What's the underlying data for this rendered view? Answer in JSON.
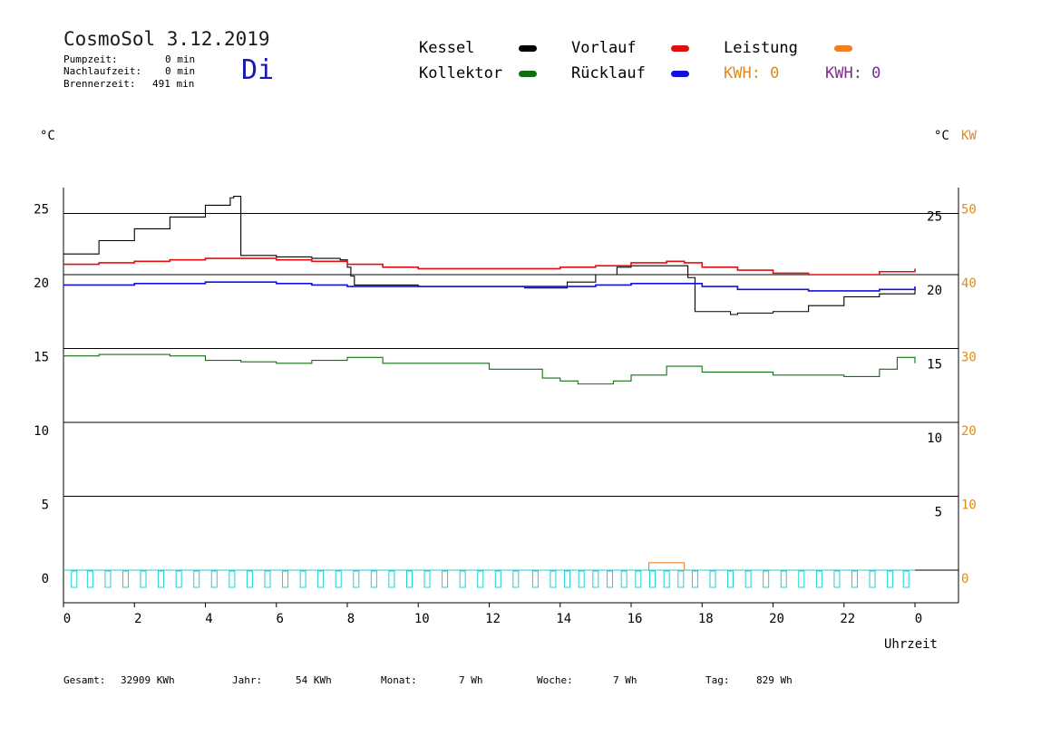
{
  "header": {
    "title": "CosmoSol 3.12.2019",
    "weekday": "Di",
    "stats": [
      {
        "label": "Pumpzeit:",
        "value": "0 min"
      },
      {
        "label": "Nachlaufzeit:",
        "value": "0 min"
      },
      {
        "label": "Brennerzeit:",
        "value": "491 min"
      }
    ]
  },
  "legend": {
    "kessel": "Kessel",
    "kollektor": "Kollektor",
    "vorlauf": "Vorlauf",
    "ruecklauf": "Rücklauf",
    "leistung": "Leistung",
    "kwh_orange": "KWH: 0",
    "kwh_purple": "KWH: 0"
  },
  "units": {
    "left": "°C",
    "right": "°C",
    "right_kw": "KW"
  },
  "footer": {
    "gesamt_label": "Gesamt:",
    "gesamt_value": "32909 KWh",
    "jahr_label": "Jahr:",
    "jahr_value": "54 KWh",
    "monat_label": "Monat:",
    "monat_value": "7 Wh",
    "woche_label": "Woche:",
    "woche_value": "7 Wh",
    "tag_label": "Tag:",
    "tag_value": "829 Wh"
  },
  "colors": {
    "kessel": "#000000",
    "vorlauf": "#e01010",
    "ruecklauf": "#1010e0",
    "kollektor": "#107010",
    "leistung": "#f08020",
    "pump": "#20d0d0",
    "kw_axis": "#e08a1e"
  },
  "chart_data": {
    "type": "line",
    "xlabel": "Uhrzeit",
    "x_ticks": [
      "0",
      "2",
      "4",
      "6",
      "8",
      "10",
      "12",
      "14",
      "16",
      "18",
      "20",
      "22",
      "0"
    ],
    "y_left_ticks": [
      "0",
      "5",
      "10",
      "15",
      "20",
      "25"
    ],
    "y_right_ticks": [
      "5",
      "10",
      "15",
      "20",
      "25"
    ],
    "y_right_kw_ticks": [
      "0",
      "10",
      "20",
      "30",
      "40",
      "50"
    ],
    "xlim": [
      0,
      24
    ],
    "ylim": [
      -2.3,
      26.5
    ],
    "grid": true,
    "series": [
      {
        "name": "Kessel",
        "key": "kessel",
        "x": [
          0,
          1,
          2,
          3,
          4,
          4.7,
          4.8,
          5.0,
          6,
          7,
          7.8,
          8.0,
          8.1,
          8.2,
          9,
          10,
          11,
          12,
          13,
          13.8,
          14.2,
          15,
          15.6,
          16,
          17,
          17.4,
          17.5,
          17.6,
          17.8,
          18.5,
          18.8,
          19,
          20,
          21,
          22,
          22.4,
          23,
          24
        ],
        "y": [
          21.4,
          22.3,
          23.1,
          23.9,
          24.7,
          25.2,
          25.3,
          21.3,
          21.2,
          21.1,
          21.0,
          20.5,
          19.9,
          19.3,
          19.3,
          19.2,
          19.2,
          19.2,
          19.1,
          19.1,
          19.5,
          20.0,
          20.5,
          20.6,
          20.6,
          20.6,
          20.6,
          19.8,
          17.5,
          17.5,
          17.3,
          17.4,
          17.5,
          17.9,
          18.5,
          18.5,
          18.7,
          19.2
        ]
      },
      {
        "name": "Vorlauf",
        "key": "vorlauf",
        "x": [
          0,
          1,
          2,
          3,
          4,
          5,
          6,
          7,
          8,
          9,
          10,
          11,
          12,
          13,
          14,
          15,
          16,
          17,
          17.5,
          18,
          19,
          20,
          21,
          22,
          23,
          24
        ],
        "y": [
          20.7,
          20.8,
          20.9,
          21.0,
          21.1,
          21.1,
          21.0,
          20.9,
          20.7,
          20.5,
          20.4,
          20.4,
          20.4,
          20.4,
          20.5,
          20.6,
          20.8,
          20.9,
          20.8,
          20.5,
          20.3,
          20.1,
          20.0,
          20.0,
          20.2,
          20.4
        ]
      },
      {
        "name": "Rücklauf",
        "key": "ruecklauf",
        "x": [
          0,
          2,
          4,
          6,
          7,
          8,
          10,
          12,
          13,
          14,
          15,
          16,
          17,
          17.5,
          18,
          19,
          20,
          21,
          22,
          23,
          24
        ],
        "y": [
          19.3,
          19.4,
          19.5,
          19.4,
          19.3,
          19.2,
          19.2,
          19.2,
          19.2,
          19.2,
          19.3,
          19.4,
          19.4,
          19.4,
          19.2,
          19.0,
          19.0,
          18.9,
          18.9,
          19.0,
          19.2
        ]
      },
      {
        "name": "Kollektor",
        "key": "kollektor",
        "x": [
          0,
          1,
          2,
          3,
          4,
          5,
          6,
          7,
          8,
          9,
          10,
          11,
          12,
          13,
          13.5,
          14,
          14.5,
          15,
          15.5,
          16,
          17,
          17.5,
          18,
          19,
          20,
          21,
          22,
          23,
          23.5,
          24
        ],
        "y": [
          14.5,
          14.6,
          14.6,
          14.5,
          14.2,
          14.1,
          14.0,
          14.2,
          14.4,
          14.0,
          14.0,
          14.0,
          13.6,
          13.6,
          13.0,
          12.8,
          12.6,
          12.6,
          12.8,
          13.2,
          13.8,
          13.8,
          13.4,
          13.4,
          13.2,
          13.2,
          13.1,
          13.6,
          14.4,
          14.0
        ]
      },
      {
        "name": "Leistung",
        "key": "leistung",
        "x": [
          16.5,
          16.5,
          17.5,
          17.5
        ],
        "y": [
          0,
          0.5,
          0.5,
          0
        ]
      }
    ],
    "pump_marks_x": [
      0.3,
      0.75,
      1.25,
      1.75,
      2.25,
      2.75,
      3.25,
      3.75,
      4.25,
      4.75,
      5.25,
      5.75,
      6.25,
      6.75,
      7.25,
      7.75,
      8.25,
      8.75,
      9.25,
      9.75,
      10.25,
      10.75,
      11.25,
      11.75,
      12.25,
      12.75,
      13.3,
      13.8,
      14.2,
      14.6,
      15.0,
      15.4,
      15.8,
      16.2,
      16.6,
      17.0,
      17.4,
      17.8,
      18.3,
      18.8,
      19.3,
      19.8,
      20.3,
      20.8,
      21.3,
      21.8,
      22.3,
      22.8,
      23.3,
      23.75
    ]
  }
}
